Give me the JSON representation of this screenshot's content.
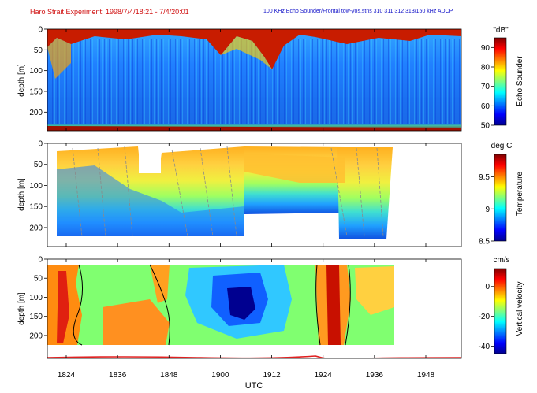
{
  "header": {
    "title": "Haro Strait Experiment: 1998/7/4/18:21 - 7/4/20:01",
    "subtitle": "100 KHz Echo Sounder/Frontal tow-yos,stns 310 311 312 313/150 kHz ADCP"
  },
  "colors": {
    "title": "#d01010",
    "subtitle": "#1010c8",
    "jet_low": "#00008f",
    "jet_high": "#800000",
    "contour": "#000000",
    "bottom_trace": "#e02020"
  },
  "x_axis": {
    "label": "UTC",
    "ticks": [
      "1824",
      "1836",
      "1848",
      "1900",
      "1912",
      "1924",
      "1936",
      "1948"
    ]
  },
  "chart_data": [
    {
      "type": "heatmap",
      "name": "echo-sounder-panel",
      "title": "",
      "xlabel": "",
      "ylabel": "depth [m]",
      "x_range_minutes_utc": [
        "18:19",
        "19:55"
      ],
      "y_ticks": [
        "0",
        "50",
        "100",
        "150",
        "200"
      ],
      "ylim": [
        245,
        0
      ],
      "colorbar": {
        "units": "\"dB\"",
        "label": "Echo Sounder",
        "ticks": [
          "50",
          "60",
          "70",
          "80",
          "90"
        ],
        "range": [
          50,
          95
        ]
      },
      "features": {
        "surface_layer_db": 92,
        "interior_db": 62,
        "seafloor_depth_m": 240,
        "seafloor_db": 95
      }
    },
    {
      "type": "heatmap",
      "name": "temperature-panel",
      "title": "",
      "xlabel": "",
      "ylabel": "depth [m]",
      "y_ticks": [
        "0",
        "50",
        "100",
        "150",
        "200"
      ],
      "ylim": [
        245,
        0
      ],
      "colorbar": {
        "units": "deg C",
        "label": "Temperature",
        "ticks": [
          "8.5",
          "9",
          "9.5"
        ],
        "range": [
          8.5,
          9.85
        ]
      },
      "sections": [
        {
          "t_start": "18:27",
          "t_end": "18:52",
          "max_depth_m": 225
        },
        {
          "t_start": "18:56",
          "t_end": "19:07",
          "max_depth_m": 225
        },
        {
          "t_start": "19:08",
          "t_end": "19:27",
          "max_depth_m": 160
        },
        {
          "t_start": "19:28",
          "t_end": "19:39",
          "max_depth_m": 228
        }
      ],
      "gap_region": {
        "t_start": "18:44",
        "t_end": "18:49",
        "depth_top_m": 30,
        "depth_bottom_m": 85
      },
      "surface_temp_c": 9.6,
      "bottom_temp_c": 8.6
    },
    {
      "type": "heatmap",
      "name": "vertical-velocity-panel",
      "title": "",
      "xlabel": "UTC",
      "ylabel": "depth [m]",
      "y_ticks": [
        "0",
        "50",
        "100",
        "150",
        "200"
      ],
      "ylim": [
        260,
        0
      ],
      "colorbar": {
        "units": "cm/s",
        "label": "Vertical velocity",
        "ticks": [
          "0",
          "-20",
          "-40"
        ],
        "range": [
          -45,
          12
        ]
      },
      "data_extent": {
        "t_start": "18:19",
        "t_end": "19:40",
        "depth_top_m": 15,
        "depth_bottom_m": 205
      },
      "features": [
        {
          "t": "18:26",
          "depth_m": 110,
          "w_cm_s": 8
        },
        {
          "t": "19:05",
          "depth_m": 110,
          "w_cm_s": -42
        },
        {
          "t": "19:27",
          "depth_m": 100,
          "w_cm_s": 10
        },
        {
          "t": "18:48",
          "depth_m": 180,
          "w_cm_s": 5
        }
      ],
      "bottom_trace_depth_m": 242
    }
  ]
}
